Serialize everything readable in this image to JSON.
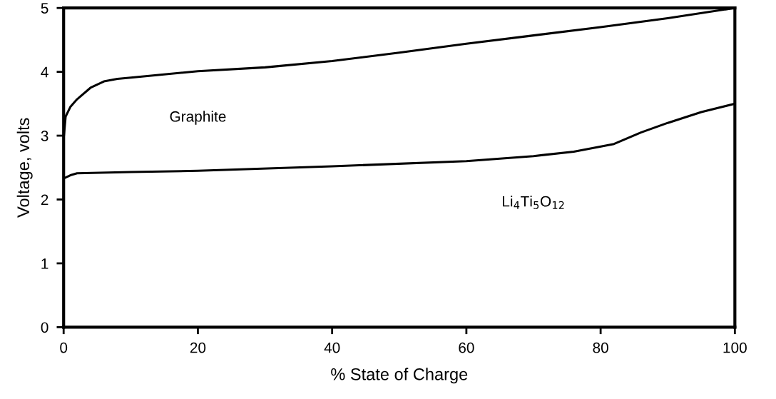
{
  "chart_data": {
    "type": "line",
    "xlabel": "% State of Charge",
    "ylabel": "Voltage, volts",
    "xlim": [
      0,
      100
    ],
    "ylim": [
      0,
      5
    ],
    "xticks": [
      0,
      20,
      40,
      60,
      80,
      100
    ],
    "yticks": [
      0,
      1,
      2,
      3,
      4,
      5
    ],
    "grid": false,
    "legend": false,
    "marker": "none",
    "line_style": "solid",
    "series": [
      {
        "name": "Graphite",
        "color": "#000000",
        "x": [
          0,
          0.3,
          1,
          2,
          4,
          6,
          8,
          10,
          20,
          30,
          40,
          50,
          60,
          70,
          80,
          90,
          100
        ],
        "values": [
          2.95,
          3.3,
          3.45,
          3.57,
          3.75,
          3.85,
          3.89,
          3.91,
          4.01,
          4.07,
          4.17,
          4.3,
          4.44,
          4.57,
          4.7,
          4.84,
          5.0
        ]
      },
      {
        "name": "Li$_{4}$Ti$_{5}$O$_{12}$",
        "color": "#000000",
        "x": [
          0,
          1,
          2,
          10,
          20,
          40,
          60,
          70,
          76,
          82,
          86,
          90,
          95,
          100
        ],
        "values": [
          2.33,
          2.38,
          2.41,
          2.43,
          2.45,
          2.52,
          2.6,
          2.68,
          2.75,
          2.87,
          3.05,
          3.2,
          3.37,
          3.5
        ]
      }
    ]
  }
}
